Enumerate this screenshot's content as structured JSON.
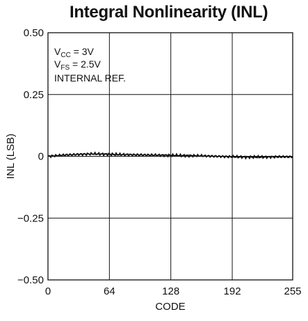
{
  "chart_data": {
    "type": "line",
    "title": "Integral Nonlinearity (INL)",
    "xlabel": "CODE",
    "ylabel": "INL (LSB)",
    "xlim": [
      0,
      255
    ],
    "ylim": [
      -0.5,
      0.5
    ],
    "xticks": [
      0,
      64,
      128,
      192,
      255
    ],
    "xtick_labels": [
      "0",
      "64",
      "128",
      "192",
      "255"
    ],
    "yticks": [
      0.5,
      0.25,
      0,
      -0.25,
      -0.5
    ],
    "ytick_labels": [
      "0.50",
      "0.25",
      "0",
      "−0.25",
      "−0.50"
    ],
    "grid": true,
    "annotations": {
      "vcc_main": "V",
      "vcc_sub": "CC",
      "vcc_rest": " = 3V",
      "vfs_main": "V",
      "vfs_sub": "FS",
      "vfs_rest": " = 2.5V",
      "ref": "INTERNAL REF."
    },
    "series": [
      {
        "x": [
          0,
          16,
          32,
          48,
          64,
          80,
          96,
          112,
          128,
          144,
          160,
          176,
          192,
          208,
          224,
          240,
          255
        ],
        "y": [
          0.0,
          0.005,
          0.008,
          0.01,
          0.008,
          0.007,
          0.006,
          0.005,
          0.004,
          0.003,
          0.002,
          0.0,
          -0.002,
          -0.003,
          -0.003,
          -0.002,
          -0.002
        ]
      }
    ]
  }
}
